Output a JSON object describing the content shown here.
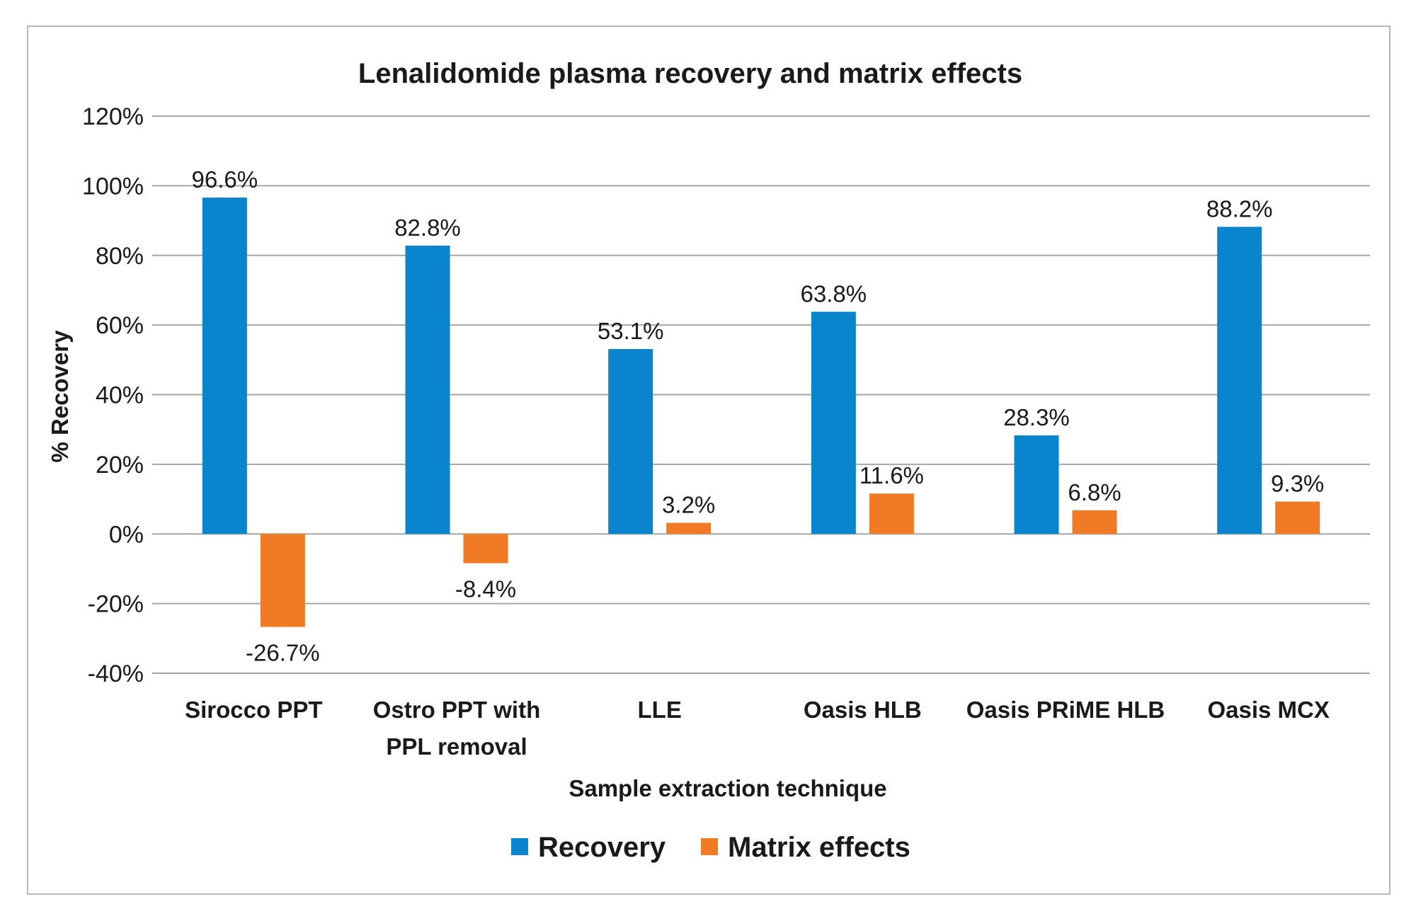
{
  "chart_data": {
    "type": "bar",
    "title": "Lenalidomide plasma recovery and matrix effects",
    "xlabel": "Sample extraction technique",
    "ylabel": "% Recovery",
    "ylim": [
      -40,
      120
    ],
    "yticks": [
      "120%",
      "100%",
      "80%",
      "60%",
      "40%",
      "20%",
      "0%",
      "-20%",
      "-40%"
    ],
    "ytick_values": [
      120,
      100,
      80,
      60,
      40,
      20,
      0,
      -20,
      -40
    ],
    "grid": true,
    "legend_position": "bottom",
    "categories": [
      [
        "Sirocco PPT"
      ],
      [
        "Ostro PPT with",
        "PPL removal"
      ],
      [
        "LLE"
      ],
      [
        "Oasis HLB"
      ],
      [
        "Oasis PRiME HLB"
      ],
      [
        "Oasis MCX"
      ]
    ],
    "series": [
      {
        "name": "Recovery",
        "color": "#0a84cc",
        "values": [
          96.6,
          82.8,
          53.1,
          63.8,
          28.3,
          88.2
        ],
        "labels": [
          "96.6%",
          "82.8%",
          "53.1%",
          "63.8%",
          "28.3%",
          "88.2%"
        ]
      },
      {
        "name": "Matrix effects",
        "color": "#f07b24",
        "values": [
          -26.7,
          -8.4,
          3.2,
          11.6,
          6.8,
          9.3
        ],
        "labels": [
          "-26.7%",
          "-8.4%",
          "3.2%",
          "11.6%",
          "6.8%",
          "9.3%"
        ]
      }
    ]
  }
}
